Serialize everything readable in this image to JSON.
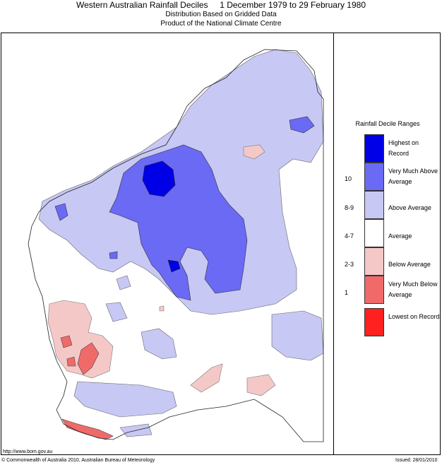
{
  "header": {
    "title": "Western Australian Rainfall Deciles     1 December 1979 to 29 February 1980",
    "subtitle1": "Distribution Based on Gridded Data",
    "subtitle2": "Product of the National Climate Centre"
  },
  "legend": {
    "title": "Rainfall Decile Ranges",
    "items": [
      {
        "label": "Highest on Record",
        "range": "",
        "color": "#0000e6"
      },
      {
        "label": "Very Much Above Average",
        "range": "10",
        "color": "#6a6af5"
      },
      {
        "label": "Above Average",
        "range": "8-9",
        "color": "#c8c8f5"
      },
      {
        "label": "Average",
        "range": "4-7",
        "color": "#ffffff"
      },
      {
        "label": "Below Average",
        "range": "2-3",
        "color": "#f5c8c8"
      },
      {
        "label": "Very Much Below Average",
        "range": "1",
        "color": "#f06a6a"
      },
      {
        "label": "Lowest on Record",
        "range": "",
        "color": "#ff2020"
      }
    ]
  },
  "footer": {
    "url": "http://www.bom.gov.au",
    "copyright": "© Commonwealth of Australia 2010, Australian Bureau of Meteorology",
    "issued": "Issued: 28/01/2010"
  }
}
